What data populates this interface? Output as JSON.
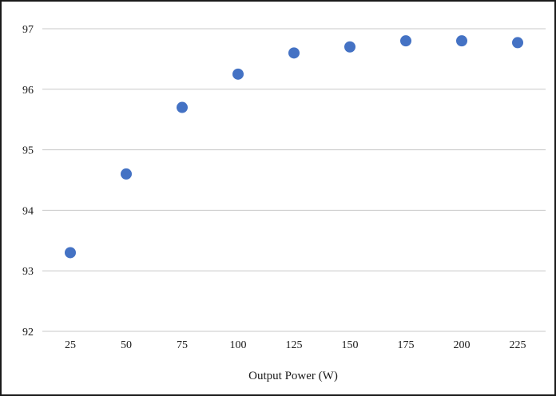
{
  "chart_data": {
    "type": "scatter",
    "title": "",
    "xlabel": "Output Power (W)",
    "ylabel": "",
    "x": [
      25,
      50,
      75,
      100,
      125,
      150,
      175,
      200,
      225
    ],
    "series": [
      {
        "values": [
          93.3,
          94.6,
          95.7,
          96.25,
          96.6,
          96.7,
          96.8,
          96.8,
          96.77
        ],
        "color": "#4472C4"
      }
    ],
    "x_ticks": [
      "25",
      "50",
      "75",
      "100",
      "125",
      "150",
      "175",
      "200",
      "225"
    ],
    "y_ticks": [
      "92",
      "93",
      "94",
      "95",
      "96",
      "97"
    ],
    "ylim": [
      92,
      97
    ],
    "grid": true,
    "legend": "none"
  }
}
